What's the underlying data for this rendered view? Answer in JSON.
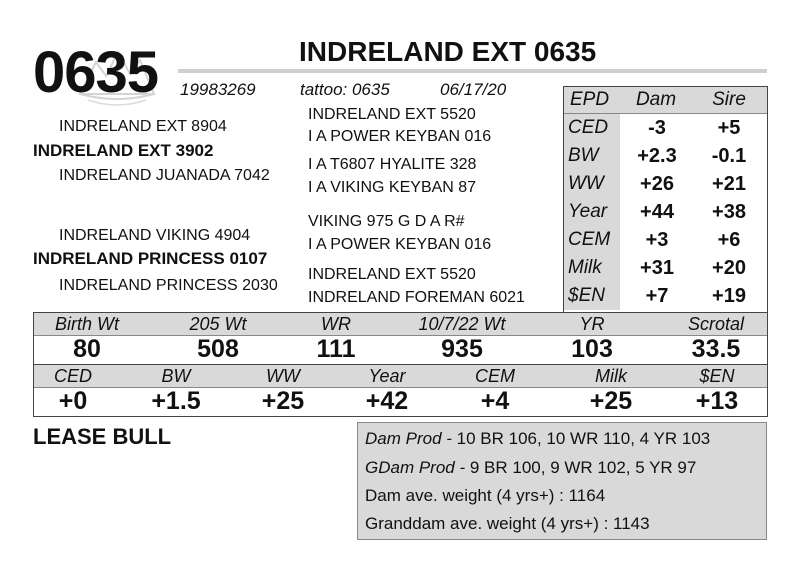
{
  "header": {
    "lot_number": "0635",
    "registration": "19983269",
    "title": "INDRELAND EXT 0635",
    "tattoo": "tattoo: 0635",
    "birth_date": "06/17/20"
  },
  "pedigree": {
    "sire_side": {
      "sire_sire": "INDRELAND EXT 8904",
      "sire": "INDRELAND EXT 3902",
      "sire_dam": "INDRELAND JUANADA 7042",
      "ss_sire": "INDRELAND EXT 5520",
      "ss_dam": "I A POWER KEYBAN 016",
      "sd_sire": "I A T6807 HYALITE 328",
      "sd_dam": "I A VIKING KEYBAN 87"
    },
    "dam_side": {
      "dam_sire": "INDRELAND VIKING 4904",
      "dam": "INDRELAND PRINCESS 0107",
      "dam_dam": "INDRELAND PRINCESS 2030",
      "ds_sire": "VIKING 975 G D A R#",
      "ds_dam": "I A POWER KEYBAN 016",
      "dd_sire": "INDRELAND EXT 5520",
      "dd_dam": "INDRELAND FOREMAN 6021"
    }
  },
  "epd_table": {
    "headers": [
      "EPD",
      "Dam",
      "Sire"
    ],
    "rows": [
      {
        "label": "CED",
        "dam": "-3",
        "sire": "+5"
      },
      {
        "label": "BW",
        "dam": "+2.3",
        "sire": "-0.1"
      },
      {
        "label": "WW",
        "dam": "+26",
        "sire": "+21"
      },
      {
        "label": "Year",
        "dam": "+44",
        "sire": "+38"
      },
      {
        "label": "CEM",
        "dam": "+3",
        "sire": "+6"
      },
      {
        "label": "Milk",
        "dam": "+31",
        "sire": "+20"
      },
      {
        "label": "$EN",
        "dam": "+7",
        "sire": "+19"
      }
    ]
  },
  "performance": {
    "headers": [
      "Birth Wt",
      "205 Wt",
      "WR",
      "10/7/22 Wt",
      "YR",
      "Scrotal"
    ],
    "values": [
      "80",
      "508",
      "111",
      "935",
      "103",
      "33.5"
    ]
  },
  "calf_epd": {
    "headers": [
      "CED",
      "BW",
      "WW",
      "Year",
      "CEM",
      "Milk",
      "$EN"
    ],
    "values": [
      "+0",
      "+1.5",
      "+25",
      "+42",
      "+4",
      "+25",
      "+13"
    ]
  },
  "status": "LEASE BULL",
  "production": {
    "dam_prod_label": "Dam Prod -",
    "dam_prod": " 10 BR 106, 10 WR 110, 4 YR 103",
    "gdam_prod_label": "GDam Prod -",
    "gdam_prod": " 9 BR 100, 9 WR 102, 5 YR 97",
    "dam_avg": "Dam ave. weight (4 yrs+) : 1164",
    "granddam_avg": "Granddam ave. weight (4 yrs+) : 1143"
  },
  "colors": {
    "header_gray": "#d9d9d9",
    "text": "#111111"
  }
}
